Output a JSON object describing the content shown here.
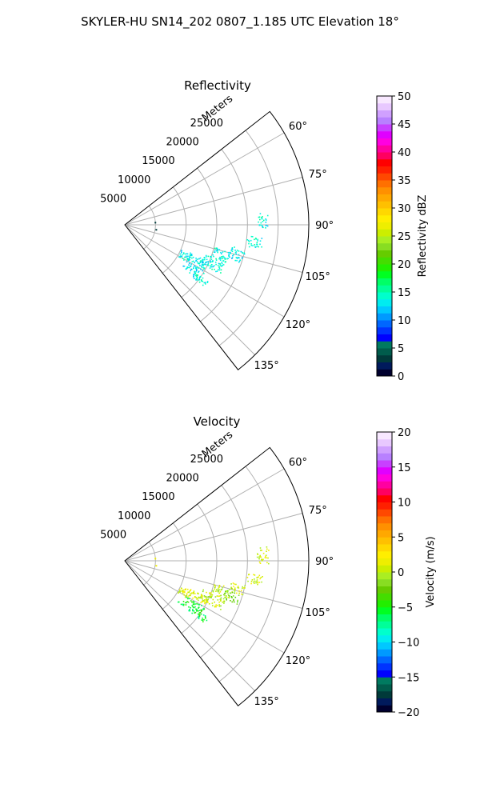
{
  "figure": {
    "title": "SKYLER-HU  SN14_202  0807_1.185 UTC Elevation 18°"
  },
  "chart_data": [
    {
      "type": "scatter",
      "projection": "polar-sector",
      "title": "Reflectivity",
      "radial_label": "Meters",
      "radial_ticks": [
        5000,
        10000,
        15000,
        20000,
        25000
      ],
      "radial_tick_labels": [
        "5000",
        "10000",
        "15000",
        "20000",
        "25000"
      ],
      "r_range": [
        0,
        30000
      ],
      "angle_range_deg": [
        52,
        142
      ],
      "angular_ticks_deg": [
        60,
        75,
        90,
        105,
        120,
        135
      ],
      "angular_tick_labels": [
        "60°",
        "75°",
        "90°",
        "105°",
        "120°",
        "135°"
      ],
      "grid": true,
      "colorbar": {
        "label": "Reflectivity dBZ",
        "range": [
          0,
          50
        ],
        "ticks": [
          0,
          5,
          10,
          15,
          20,
          25,
          30,
          35,
          40,
          45,
          50
        ],
        "tick_labels": [
          "0",
          "5",
          "10",
          "15",
          "20",
          "25",
          "30",
          "35",
          "40",
          "45",
          "50"
        ]
      },
      "echo_regions": [
        {
          "a": [
            85,
            91
          ],
          "r": [
            21500,
            23500
          ],
          "value": 14
        },
        {
          "a": [
            95,
            100
          ],
          "r": [
            20000,
            22500
          ],
          "value": 14
        },
        {
          "a": [
            101,
            108
          ],
          "r": [
            17500,
            20000
          ],
          "value": 13
        },
        {
          "a": [
            104,
            110
          ],
          "r": [
            15000,
            18000
          ],
          "value": 14
        },
        {
          "a": [
            110,
            117
          ],
          "r": [
            13500,
            17500
          ],
          "value": 14
        },
        {
          "a": [
            113,
            119
          ],
          "r": [
            11500,
            15000
          ],
          "value": 13
        },
        {
          "a": [
            114,
            121
          ],
          "r": [
            10000,
            12000
          ],
          "value": 14
        },
        {
          "a": [
            120,
            126
          ],
          "r": [
            11500,
            15000
          ],
          "value": 13
        },
        {
          "a": [
            124,
            128
          ],
          "r": [
            13000,
            16500
          ],
          "value": 14
        }
      ],
      "point_echoes": [
        {
          "a": 86,
          "r": 5000,
          "value": 3
        },
        {
          "a": 99,
          "r": 5200,
          "value": 3
        }
      ]
    },
    {
      "type": "scatter",
      "projection": "polar-sector",
      "title": "Velocity",
      "radial_label": "Meters",
      "radial_ticks": [
        5000,
        10000,
        15000,
        20000,
        25000
      ],
      "radial_tick_labels": [
        "5000",
        "10000",
        "15000",
        "20000",
        "25000"
      ],
      "r_range": [
        0,
        30000
      ],
      "angle_range_deg": [
        52,
        142
      ],
      "angular_ticks_deg": [
        60,
        75,
        90,
        105,
        120,
        135
      ],
      "angular_tick_labels": [
        "60°",
        "75°",
        "90°",
        "105°",
        "120°",
        "135°"
      ],
      "grid": true,
      "colorbar": {
        "label": "Velocity (m/s)",
        "range": [
          -20,
          20
        ],
        "ticks": [
          -20,
          -15,
          -10,
          -5,
          0,
          5,
          10,
          15,
          20
        ],
        "tick_labels": [
          "−20",
          "−15",
          "−10",
          "−5",
          "0",
          "5",
          "10",
          "15",
          "20"
        ]
      },
      "echo_regions": [
        {
          "a": [
            84,
            91
          ],
          "r": [
            21500,
            23500
          ],
          "value": 1
        },
        {
          "a": [
            95,
            100
          ],
          "r": [
            20000,
            22500
          ],
          "value": 1
        },
        {
          "a": [
            101,
            106
          ],
          "r": [
            17500,
            20000
          ],
          "value": 1
        },
        {
          "a": [
            106,
            111
          ],
          "r": [
            17000,
            19500
          ],
          "value": -3
        },
        {
          "a": [
            104,
            110
          ],
          "r": [
            15000,
            18000
          ],
          "value": 0
        },
        {
          "a": [
            110,
            117
          ],
          "r": [
            13500,
            17500
          ],
          "value": 0
        },
        {
          "a": [
            113,
            119
          ],
          "r": [
            11500,
            15000
          ],
          "value": 1
        },
        {
          "a": [
            114,
            121
          ],
          "r": [
            10000,
            12000
          ],
          "value": 1
        },
        {
          "a": [
            120,
            126
          ],
          "r": [
            11500,
            15000
          ],
          "value": -5
        },
        {
          "a": [
            124,
            128
          ],
          "r": [
            13000,
            16500
          ],
          "value": -6
        },
        {
          "a": [
            126,
            128
          ],
          "r": [
            10500,
            12000
          ],
          "value": -6
        }
      ],
      "point_echoes": [
        {
          "a": 86,
          "r": 5000,
          "value": 1
        },
        {
          "a": 99,
          "r": 5200,
          "value": 1
        }
      ]
    }
  ]
}
